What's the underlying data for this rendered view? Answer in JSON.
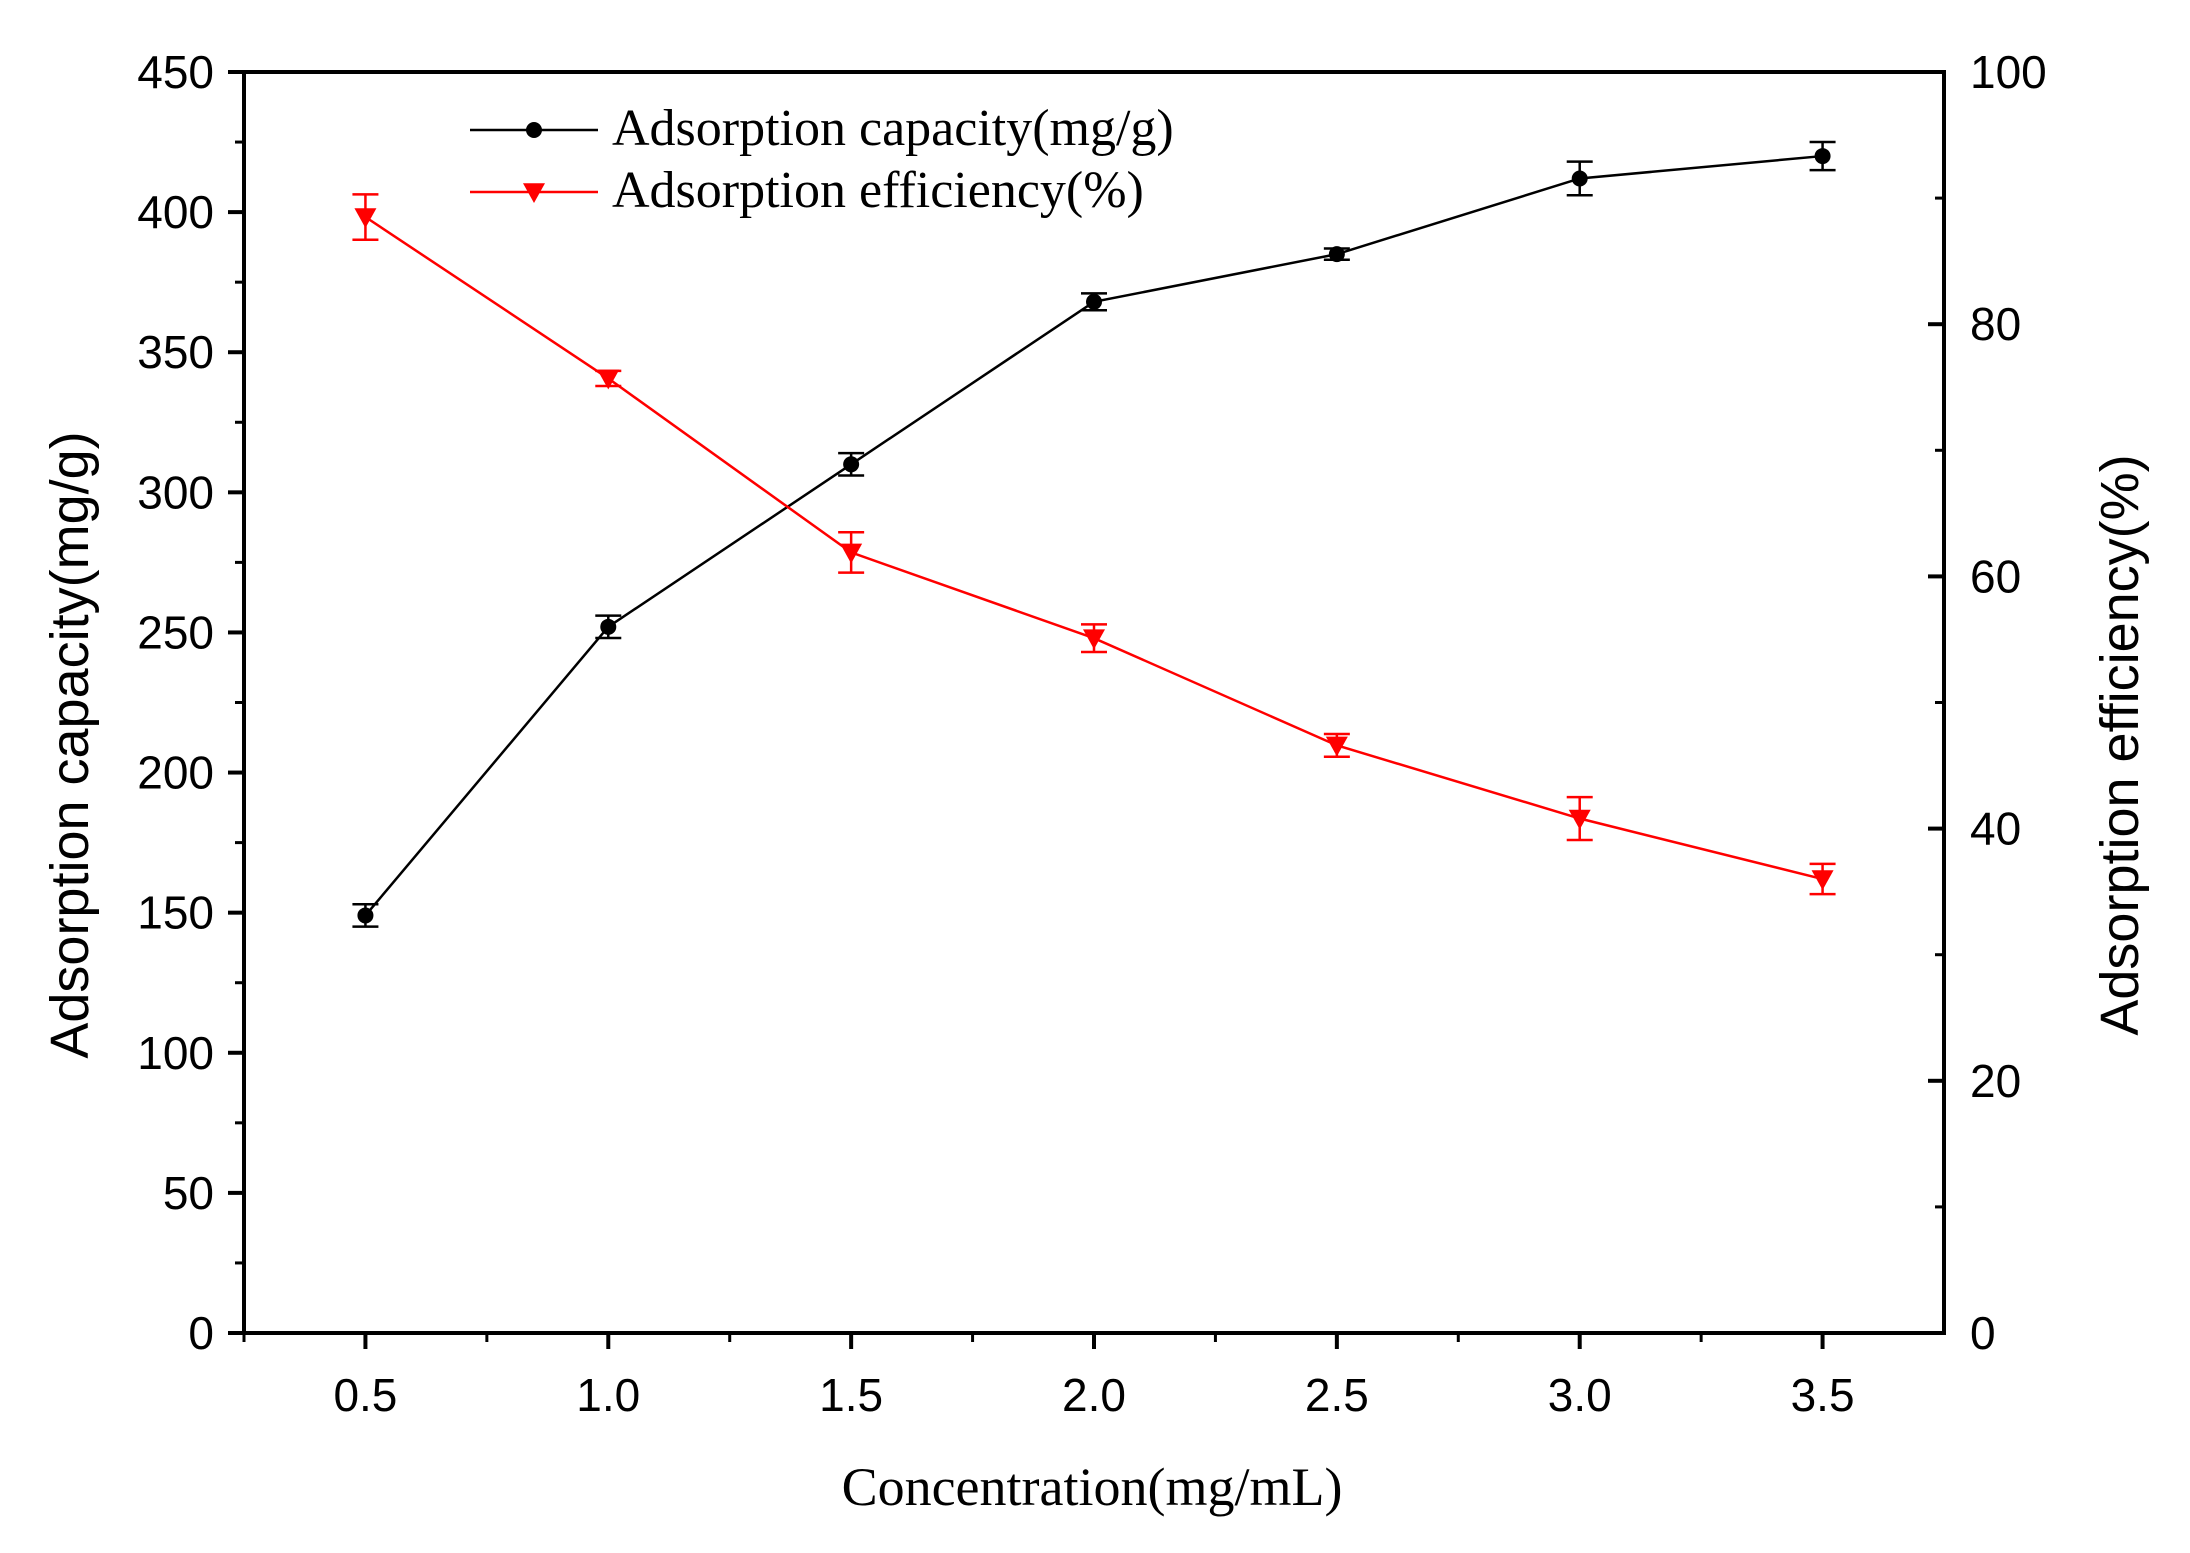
{
  "chart_data": {
    "type": "line",
    "x": [
      0.5,
      1.0,
      1.5,
      2.0,
      2.5,
      3.0,
      3.5
    ],
    "x_tick_labels": [
      "0.5",
      "1.0",
      "1.5",
      "2.0",
      "2.5",
      "3.0",
      "3.5"
    ],
    "xlabel": "Concentration(mg/mL)",
    "xlim": [
      0.25,
      3.75
    ],
    "ylabel_left": "Adsorption capacity(mg/g)",
    "ylim_left": [
      0,
      450
    ],
    "y_left_tick_labels": [
      "0",
      "50",
      "100",
      "150",
      "200",
      "250",
      "300",
      "350",
      "400",
      "450"
    ],
    "ylabel_right": "Adsorption efficiency(%)",
    "ylim_right": [
      0,
      100
    ],
    "y_right_tick_labels": [
      "0",
      "20",
      "40",
      "60",
      "80",
      "100"
    ],
    "grid": false,
    "legend_position": "top-left",
    "series": [
      {
        "name": "Adsorption capacity(mg/g)",
        "axis": "left",
        "color": "#000000",
        "marker": "circle",
        "values": [
          149,
          252,
          310,
          368,
          385,
          412,
          420
        ],
        "errors": [
          4,
          4,
          4,
          3,
          2,
          6,
          5
        ]
      },
      {
        "name": "Adsorption efficiency(%)",
        "axis": "right",
        "color": "#ff0000",
        "marker": "triangle-down",
        "values": [
          88.5,
          75.7,
          61.9,
          55.1,
          46.6,
          40.8,
          36.0
        ],
        "errors": [
          1.8,
          0.6,
          1.6,
          1.1,
          0.9,
          1.7,
          1.2
        ]
      }
    ]
  }
}
